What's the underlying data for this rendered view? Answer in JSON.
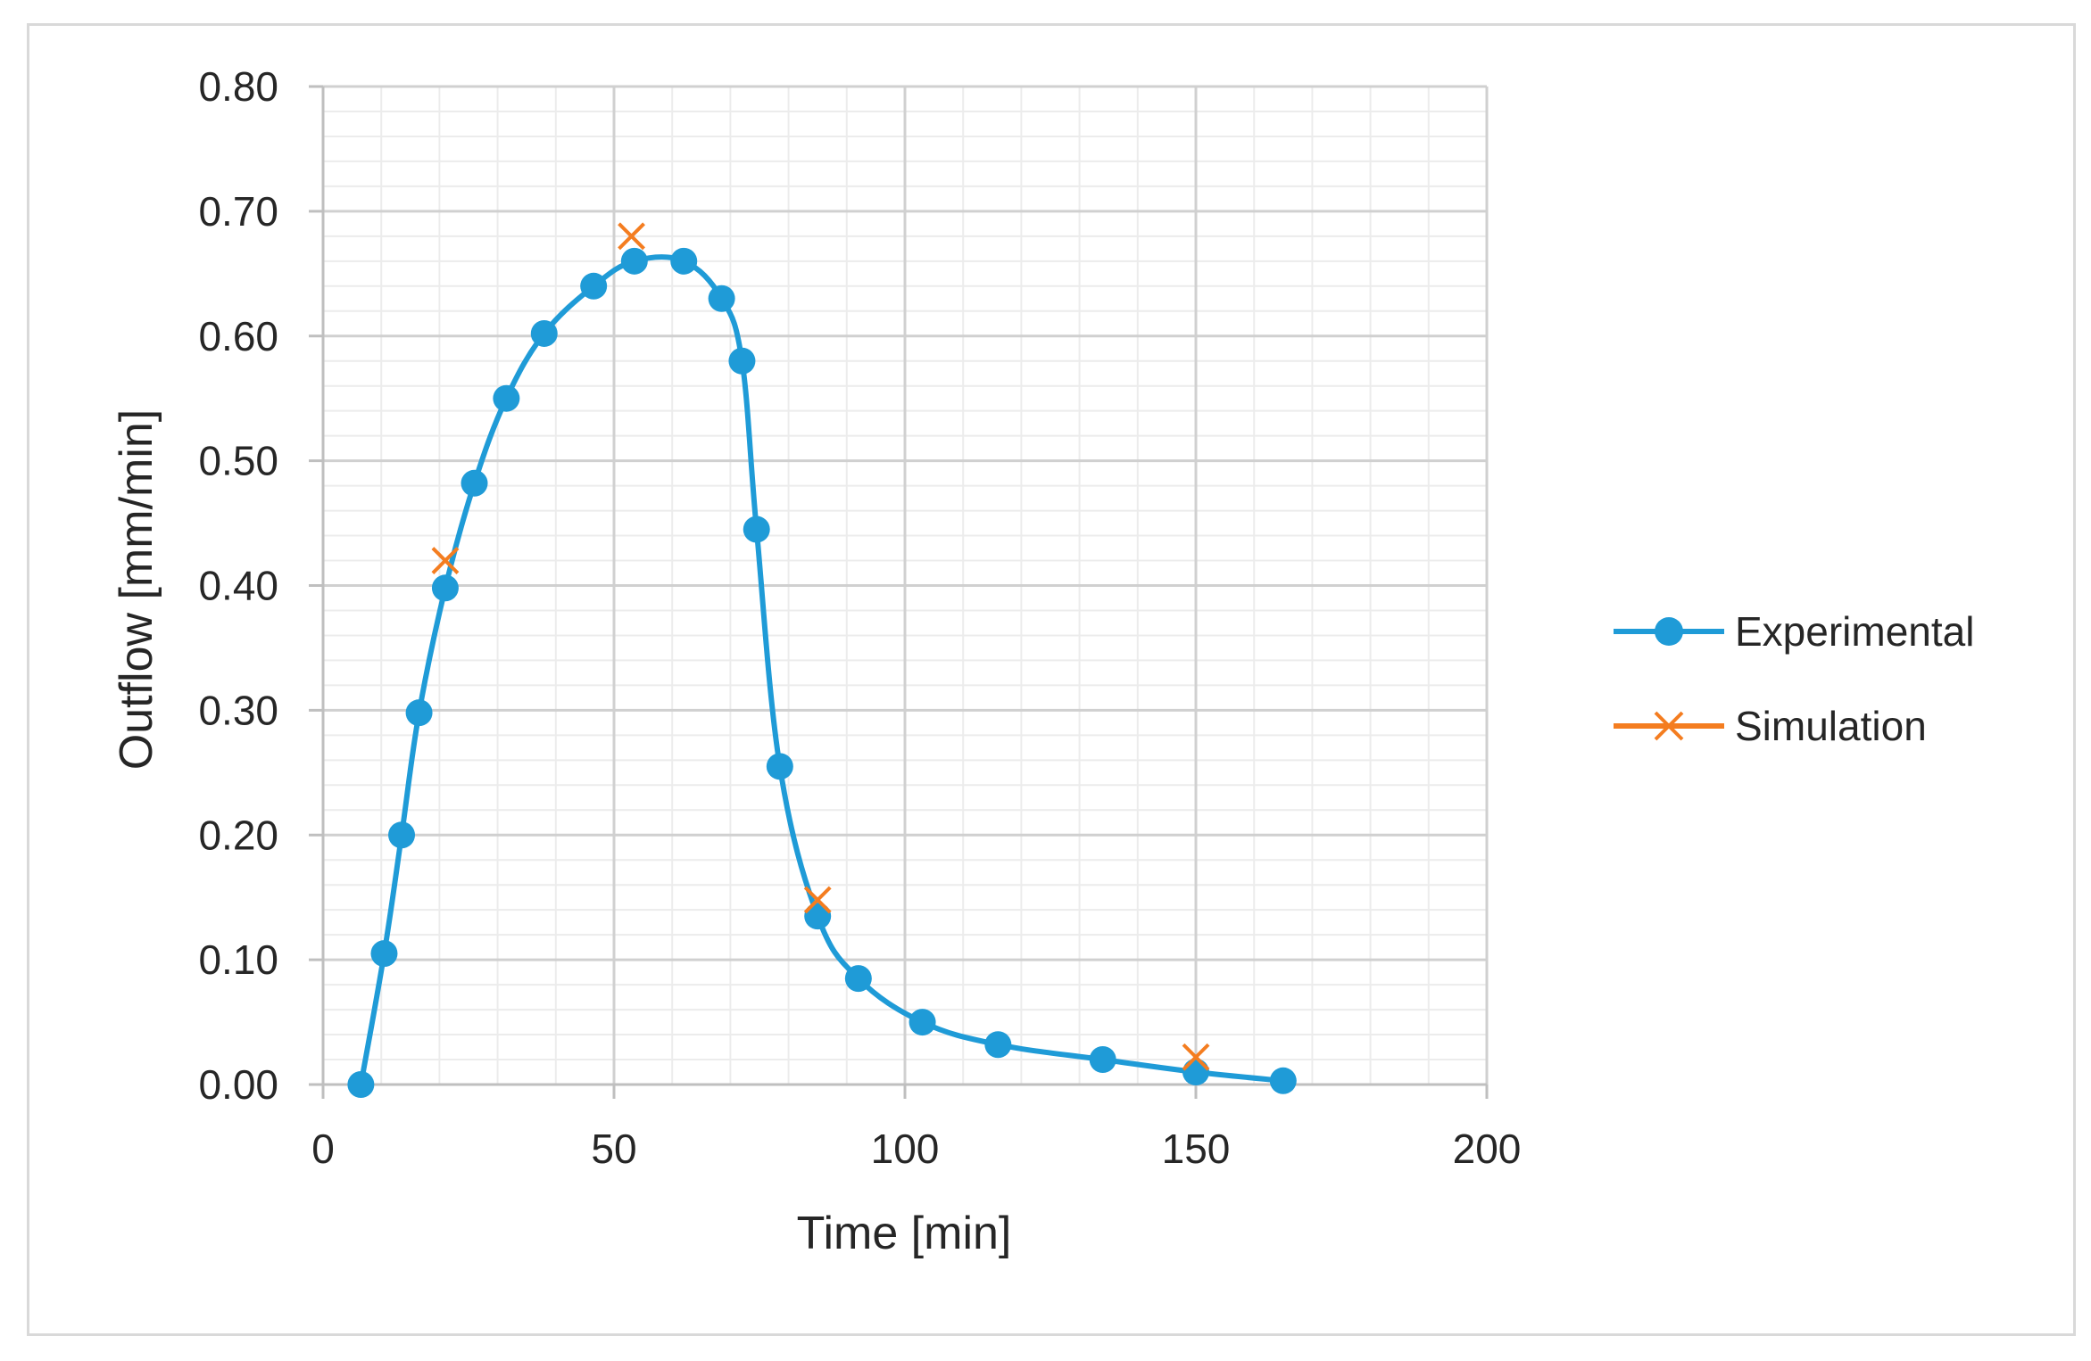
{
  "chart_data": {
    "type": "line",
    "title": "",
    "xlabel": "Time [min]",
    "ylabel": "Outflow [mm/min]",
    "xlim": [
      0,
      200
    ],
    "ylim": [
      0,
      0.8
    ],
    "x_ticks": [
      "0",
      "50",
      "100",
      "150",
      "200"
    ],
    "y_ticks": [
      "0.00",
      "0.10",
      "0.20",
      "0.30",
      "0.40",
      "0.50",
      "0.60",
      "0.70",
      "0.80"
    ],
    "grid": true,
    "minor_grid": true,
    "legend_position": "right",
    "series": [
      {
        "name": "Experimental",
        "color": "#1f9bd7",
        "marker": "circle",
        "line": true,
        "x": [
          6.5,
          10.5,
          13.5,
          16.5,
          21,
          26,
          31.5,
          38,
          46.5,
          53.5,
          62,
          68.5,
          72,
          74.5,
          78.5,
          85,
          92,
          103,
          116,
          134,
          150,
          165
        ],
        "y": [
          0.0,
          0.105,
          0.2,
          0.298,
          0.398,
          0.482,
          0.55,
          0.602,
          0.64,
          0.66,
          0.66,
          0.63,
          0.58,
          0.445,
          0.255,
          0.135,
          0.085,
          0.05,
          0.032,
          0.02,
          0.01,
          0.003
        ]
      },
      {
        "name": "Simulation",
        "color": "#f47d20",
        "marker": "x",
        "line": false,
        "x": [
          21,
          53,
          85,
          150
        ],
        "y": [
          0.42,
          0.68,
          0.148,
          0.022
        ]
      }
    ]
  }
}
